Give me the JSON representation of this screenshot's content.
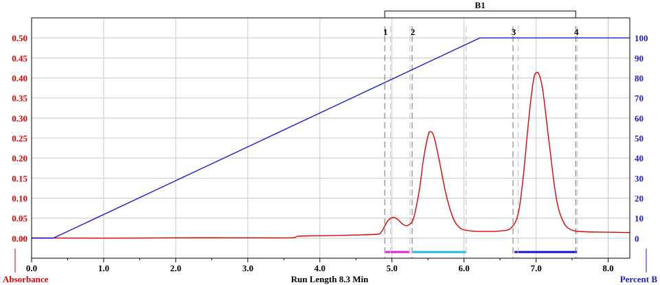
{
  "chart_data": {
    "type": "line",
    "x_axis": {
      "label": "Run Length 8.3 Min",
      "range": [
        0.0,
        8.3
      ],
      "ticks": [
        0.0,
        1.0,
        2.0,
        3.0,
        4.0,
        5.0,
        6.0,
        7.0,
        8.0
      ],
      "tick_labels": [
        "0.0",
        "1.0",
        "2.0",
        "3.0",
        "4.0",
        "5.0",
        "6.0",
        "7.0",
        "8.0"
      ]
    },
    "y_left": {
      "label": "Absorbance",
      "range": [
        0.0,
        0.5
      ],
      "ticks": [
        0.0,
        0.05,
        0.1,
        0.15,
        0.2,
        0.25,
        0.3,
        0.35,
        0.4,
        0.45,
        0.5
      ],
      "tick_labels": [
        "0.00",
        "0.05",
        "0.10",
        "0.15",
        "0.20",
        "0.25",
        "0.30",
        "0.35",
        "0.40",
        "0.45",
        "0.50"
      ],
      "color": "#e00000"
    },
    "y_right": {
      "label": "Percent B",
      "range": [
        0,
        100
      ],
      "ticks": [
        0,
        10,
        20,
        30,
        40,
        50,
        60,
        70,
        80,
        90,
        100
      ],
      "tick_labels": [
        "0",
        "10",
        "20",
        "30",
        "40",
        "50",
        "60",
        "70",
        "80",
        "90",
        "100"
      ],
      "color": "#1a1acc"
    },
    "grid": true,
    "series": [
      {
        "axis": "left",
        "color": "#e00000",
        "points": [
          [
            0.0,
            0.001
          ],
          [
            1.0,
            0.0
          ],
          [
            2.0,
            0.001
          ],
          [
            3.0,
            0.001
          ],
          [
            3.6,
            0.001
          ],
          [
            3.7,
            0.005
          ],
          [
            4.0,
            0.006
          ],
          [
            4.5,
            0.008
          ],
          [
            4.8,
            0.01
          ],
          [
            4.85,
            0.015
          ],
          [
            4.9,
            0.03
          ],
          [
            4.95,
            0.045
          ],
          [
            5.02,
            0.052
          ],
          [
            5.08,
            0.047
          ],
          [
            5.15,
            0.035
          ],
          [
            5.22,
            0.032
          ],
          [
            5.3,
            0.05
          ],
          [
            5.38,
            0.12
          ],
          [
            5.44,
            0.2
          ],
          [
            5.5,
            0.255
          ],
          [
            5.53,
            0.266
          ],
          [
            5.58,
            0.255
          ],
          [
            5.65,
            0.2
          ],
          [
            5.75,
            0.11
          ],
          [
            5.85,
            0.05
          ],
          [
            5.95,
            0.025
          ],
          [
            6.1,
            0.018
          ],
          [
            6.3,
            0.017
          ],
          [
            6.5,
            0.018
          ],
          [
            6.65,
            0.025
          ],
          [
            6.75,
            0.06
          ],
          [
            6.82,
            0.15
          ],
          [
            6.9,
            0.3
          ],
          [
            6.96,
            0.39
          ],
          [
            7.0,
            0.413
          ],
          [
            7.05,
            0.405
          ],
          [
            7.1,
            0.36
          ],
          [
            7.18,
            0.24
          ],
          [
            7.28,
            0.1
          ],
          [
            7.38,
            0.04
          ],
          [
            7.5,
            0.02
          ],
          [
            7.7,
            0.016
          ],
          [
            8.0,
            0.015
          ],
          [
            8.3,
            0.014
          ]
        ]
      },
      {
        "axis": "right",
        "color": "#1a1acc",
        "points": [
          [
            0.0,
            0
          ],
          [
            0.3,
            0
          ],
          [
            6.22,
            100
          ],
          [
            8.3,
            100
          ]
        ]
      }
    ],
    "annotations": {
      "bracket_label": "B1",
      "bracket_range": [
        4.9,
        7.55
      ],
      "markers": [
        {
          "label": "1",
          "x": 4.9
        },
        {
          "label": "2",
          "x": 5.28
        },
        {
          "label": "3",
          "x": 6.68
        },
        {
          "label": "4",
          "x": 7.55
        }
      ],
      "extra_dashed_lines_x": [
        4.98,
        5.25,
        6.03,
        6.75,
        7.57
      ],
      "fractions": [
        {
          "x": [
            4.91,
            5.24
          ],
          "color": "#e020e0"
        },
        {
          "x": [
            5.29,
            6.03
          ],
          "color": "#20b8e8"
        },
        {
          "x": [
            6.7,
            7.57
          ],
          "color": "#1010d0"
        }
      ]
    }
  }
}
